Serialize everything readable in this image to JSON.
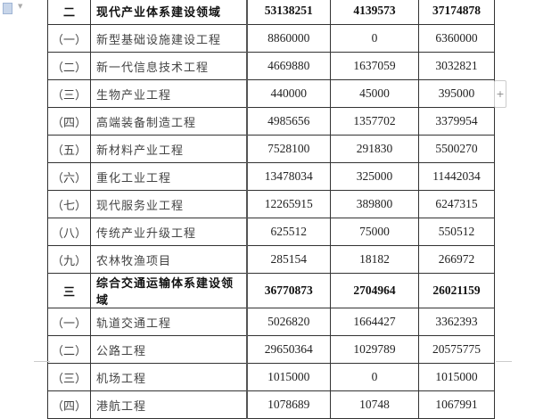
{
  "rows": [
    {
      "idx": "二",
      "name": "现代产业体系建设领域",
      "a": "53138251",
      "b": "4139573",
      "c": "37174878",
      "bold": true
    },
    {
      "idx": "（一）",
      "name": "新型基础设施建设工程",
      "a": "8860000",
      "b": "0",
      "c": "6360000"
    },
    {
      "idx": "（二）",
      "name": "新一代信息技术工程",
      "a": "4669880",
      "b": "1637059",
      "c": "3032821"
    },
    {
      "idx": "（三）",
      "name": "生物产业工程",
      "a": "440000",
      "b": "45000",
      "c": "395000"
    },
    {
      "idx": "（四）",
      "name": "高端装备制造工程",
      "a": "4985656",
      "b": "1357702",
      "c": "3379954"
    },
    {
      "idx": "（五）",
      "name": "新材料产业工程",
      "a": "7528100",
      "b": "291830",
      "c": "5500270"
    },
    {
      "idx": "（六）",
      "name": "重化工业工程",
      "a": "13478034",
      "b": "325000",
      "c": "11442034"
    },
    {
      "idx": "（七）",
      "name": "现代服务业工程",
      "a": "12265915",
      "b": "389800",
      "c": "6247315"
    },
    {
      "idx": "（八）",
      "name": "传统产业升级工程",
      "a": "625512",
      "b": "75000",
      "c": "550512"
    },
    {
      "idx": "（九）",
      "name": "农林牧渔项目",
      "a": "285154",
      "b": "18182",
      "c": "266972"
    },
    {
      "idx": "三",
      "name": "综合交通运输体系建设领域",
      "a": "36770873",
      "b": "2704964",
      "c": "26021159",
      "bold": true
    },
    {
      "idx": "（一）",
      "name": "轨道交通工程",
      "a": "5026820",
      "b": "1664427",
      "c": "3362393"
    },
    {
      "idx": "（二）",
      "name": "公路工程",
      "a": "29650364",
      "b": "1029789",
      "c": "20575775"
    },
    {
      "idx": "（三）",
      "name": "机场工程",
      "a": "1015000",
      "b": "0",
      "c": "1015000"
    },
    {
      "idx": "（四）",
      "name": "港航工程",
      "a": "1078689",
      "b": "10748",
      "c": "1067991"
    }
  ],
  "add_button": "+"
}
